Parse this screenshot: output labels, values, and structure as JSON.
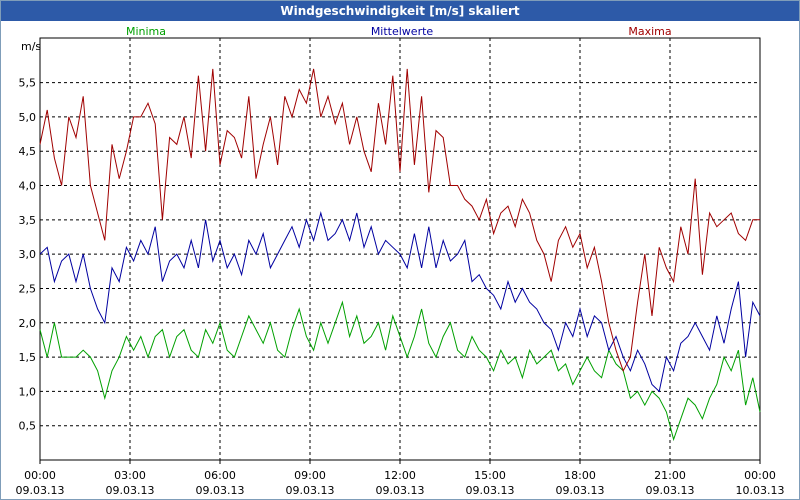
{
  "title": "Windgeschwindigkeit [m/s] skaliert",
  "chart_data": {
    "type": "line",
    "title": "Windgeschwindigkeit [m/s] skaliert",
    "ylabel": "m/s",
    "ylim": [
      0,
      6.15
    ],
    "y_ticks": [
      "0,5",
      "1,0",
      "1,5",
      "2,0",
      "2,5",
      "3,0",
      "3,5",
      "4,0",
      "4,5",
      "5,0",
      "5,5"
    ],
    "y_tick_values": [
      0.5,
      1.0,
      1.5,
      2.0,
      2.5,
      3.0,
      3.5,
      4.0,
      4.5,
      5.0,
      5.5
    ],
    "x_tick_times": [
      "00:00",
      "03:00",
      "06:00",
      "09:00",
      "12:00",
      "15:00",
      "18:00",
      "21:00",
      "00:00"
    ],
    "x_tick_dates": [
      "09.03.13",
      "09.03.13",
      "09.03.13",
      "09.03.13",
      "09.03.13",
      "09.03.13",
      "09.03.13",
      "09.03.13",
      "10.03.13"
    ],
    "x_hours_range": [
      0,
      24
    ],
    "legend": [
      "Minima",
      "Mittelwerte",
      "Maxima"
    ],
    "series": [
      {
        "name": "Minima",
        "color": "#00a000",
        "hours": [
          0.0,
          0.24,
          0.48,
          0.72,
          0.96,
          1.2,
          1.44,
          1.68,
          1.92,
          2.16,
          2.4,
          2.64,
          2.88,
          3.12,
          3.36,
          3.6,
          3.84,
          4.08,
          4.32,
          4.56,
          4.8,
          5.04,
          5.28,
          5.52,
          5.76,
          6.0,
          6.24,
          6.48,
          6.72,
          6.96,
          7.2,
          7.44,
          7.68,
          7.92,
          8.16,
          8.4,
          8.64,
          8.88,
          9.12,
          9.36,
          9.6,
          9.84,
          10.08,
          10.32,
          10.56,
          10.8,
          11.04,
          11.28,
          11.52,
          11.76,
          12.0,
          12.24,
          12.48,
          12.72,
          12.96,
          13.2,
          13.44,
          13.68,
          13.92,
          14.16,
          14.4,
          14.64,
          14.88,
          15.12,
          15.36,
          15.6,
          15.84,
          16.08,
          16.32,
          16.56,
          16.8,
          17.04,
          17.28,
          17.52,
          17.76,
          18.0,
          18.24,
          18.48,
          18.72,
          18.96,
          19.2,
          19.44,
          19.68,
          19.92,
          20.16,
          20.4,
          20.64,
          20.88,
          21.12,
          21.36,
          21.6,
          21.84,
          22.08,
          22.32,
          22.56,
          22.8,
          23.04,
          23.28,
          23.52,
          23.76,
          24.0
        ],
        "values": [
          1.9,
          1.5,
          2.0,
          1.5,
          1.5,
          1.5,
          1.6,
          1.5,
          1.3,
          0.9,
          1.3,
          1.5,
          1.8,
          1.6,
          1.8,
          1.5,
          1.8,
          1.9,
          1.5,
          1.8,
          1.9,
          1.6,
          1.5,
          1.9,
          1.7,
          2.0,
          1.6,
          1.5,
          1.8,
          2.1,
          1.9,
          1.7,
          2.0,
          1.6,
          1.5,
          1.9,
          2.2,
          1.8,
          1.6,
          2.0,
          1.7,
          2.0,
          2.3,
          1.8,
          2.1,
          1.7,
          1.8,
          2.0,
          1.6,
          2.1,
          1.8,
          1.5,
          1.8,
          2.2,
          1.7,
          1.5,
          1.8,
          2.0,
          1.6,
          1.5,
          1.8,
          1.6,
          1.5,
          1.3,
          1.6,
          1.4,
          1.5,
          1.2,
          1.6,
          1.4,
          1.5,
          1.6,
          1.3,
          1.4,
          1.1,
          1.3,
          1.5,
          1.3,
          1.2,
          1.6,
          1.4,
          1.3,
          0.9,
          1.0,
          0.8,
          1.0,
          0.9,
          0.7,
          0.3,
          0.6,
          0.9,
          0.8,
          0.6,
          0.9,
          1.1,
          1.5,
          1.3,
          1.6,
          0.8,
          1.2,
          0.7
        ]
      },
      {
        "name": "Mittelwerte",
        "color": "#0000a0",
        "hours": [
          0.0,
          0.24,
          0.48,
          0.72,
          0.96,
          1.2,
          1.44,
          1.68,
          1.92,
          2.16,
          2.4,
          2.64,
          2.88,
          3.12,
          3.36,
          3.6,
          3.84,
          4.08,
          4.32,
          4.56,
          4.8,
          5.04,
          5.28,
          5.52,
          5.76,
          6.0,
          6.24,
          6.48,
          6.72,
          6.96,
          7.2,
          7.44,
          7.68,
          7.92,
          8.16,
          8.4,
          8.64,
          8.88,
          9.12,
          9.36,
          9.6,
          9.84,
          10.08,
          10.32,
          10.56,
          10.8,
          11.04,
          11.28,
          11.52,
          11.76,
          12.0,
          12.24,
          12.48,
          12.72,
          12.96,
          13.2,
          13.44,
          13.68,
          13.92,
          14.16,
          14.4,
          14.64,
          14.88,
          15.12,
          15.36,
          15.6,
          15.84,
          16.08,
          16.32,
          16.56,
          16.8,
          17.04,
          17.28,
          17.52,
          17.76,
          18.0,
          18.24,
          18.48,
          18.72,
          18.96,
          19.2,
          19.44,
          19.68,
          19.92,
          20.16,
          20.4,
          20.64,
          20.88,
          21.12,
          21.36,
          21.6,
          21.84,
          22.08,
          22.32,
          22.56,
          22.8,
          23.04,
          23.28,
          23.52,
          23.76,
          24.0
        ],
        "values": [
          3.0,
          3.1,
          2.6,
          2.9,
          3.0,
          2.6,
          3.0,
          2.5,
          2.2,
          2.0,
          2.8,
          2.6,
          3.1,
          2.9,
          3.2,
          3.0,
          3.4,
          2.6,
          2.9,
          3.0,
          2.8,
          3.2,
          2.8,
          3.5,
          2.9,
          3.2,
          2.8,
          3.0,
          2.7,
          3.2,
          3.0,
          3.3,
          2.8,
          3.0,
          3.2,
          3.4,
          3.1,
          3.5,
          3.2,
          3.6,
          3.2,
          3.3,
          3.5,
          3.2,
          3.6,
          3.1,
          3.4,
          3.0,
          3.2,
          3.1,
          3.0,
          2.8,
          3.3,
          2.8,
          3.4,
          2.8,
          3.2,
          2.9,
          3.0,
          3.2,
          2.6,
          2.7,
          2.5,
          2.4,
          2.2,
          2.6,
          2.3,
          2.5,
          2.3,
          2.2,
          2.0,
          1.9,
          1.6,
          2.0,
          1.8,
          2.2,
          1.8,
          2.1,
          2.0,
          1.6,
          1.8,
          1.5,
          1.3,
          1.6,
          1.4,
          1.1,
          1.0,
          1.5,
          1.3,
          1.7,
          1.8,
          2.0,
          1.8,
          1.6,
          2.1,
          1.7,
          2.2,
          2.6,
          1.5,
          2.3,
          2.1
        ]
      },
      {
        "name": "Maxima",
        "color": "#a00000",
        "hours": [
          0.0,
          0.24,
          0.48,
          0.72,
          0.96,
          1.2,
          1.44,
          1.68,
          1.92,
          2.16,
          2.4,
          2.64,
          2.88,
          3.12,
          3.36,
          3.6,
          3.84,
          4.08,
          4.32,
          4.56,
          4.8,
          5.04,
          5.28,
          5.52,
          5.76,
          6.0,
          6.24,
          6.48,
          6.72,
          6.96,
          7.2,
          7.44,
          7.68,
          7.92,
          8.16,
          8.4,
          8.64,
          8.88,
          9.12,
          9.36,
          9.6,
          9.84,
          10.08,
          10.32,
          10.56,
          10.8,
          11.04,
          11.28,
          11.52,
          11.76,
          12.0,
          12.24,
          12.48,
          12.72,
          12.96,
          13.2,
          13.44,
          13.68,
          13.92,
          14.16,
          14.4,
          14.64,
          14.88,
          15.12,
          15.36,
          15.6,
          15.84,
          16.08,
          16.32,
          16.56,
          16.8,
          17.04,
          17.28,
          17.52,
          17.76,
          18.0,
          18.24,
          18.48,
          18.72,
          18.96,
          19.2,
          19.44,
          19.68,
          19.92,
          20.16,
          20.4,
          20.64,
          20.88,
          21.12,
          21.36,
          21.6,
          21.84,
          22.08,
          22.32,
          22.56,
          22.8,
          23.04,
          23.28,
          23.52,
          23.76,
          24.0
        ],
        "values": [
          4.6,
          5.1,
          4.4,
          4.0,
          5.0,
          4.7,
          5.3,
          4.0,
          3.6,
          3.2,
          4.6,
          4.1,
          4.5,
          5.0,
          5.0,
          5.2,
          4.9,
          3.5,
          4.7,
          4.6,
          5.0,
          4.4,
          5.6,
          4.5,
          5.7,
          4.3,
          4.8,
          4.7,
          4.4,
          5.3,
          4.1,
          4.6,
          5.0,
          4.3,
          5.3,
          5.0,
          5.4,
          5.2,
          5.7,
          5.0,
          5.3,
          4.9,
          5.2,
          4.6,
          5.0,
          4.5,
          4.2,
          5.2,
          4.6,
          5.6,
          4.2,
          5.7,
          4.3,
          5.3,
          3.9,
          4.8,
          4.7,
          4.0,
          4.0,
          3.8,
          3.7,
          3.5,
          3.8,
          3.3,
          3.6,
          3.7,
          3.4,
          3.8,
          3.6,
          3.2,
          3.0,
          2.6,
          3.2,
          3.4,
          3.1,
          3.3,
          2.8,
          3.1,
          2.6,
          2.0,
          1.6,
          1.3,
          1.5,
          2.3,
          3.0,
          2.1,
          3.1,
          2.8,
          2.6,
          3.4,
          3.0,
          4.1,
          2.7,
          3.6,
          3.4,
          3.5,
          3.6,
          3.3,
          3.2,
          3.5,
          3.5
        ]
      }
    ]
  }
}
